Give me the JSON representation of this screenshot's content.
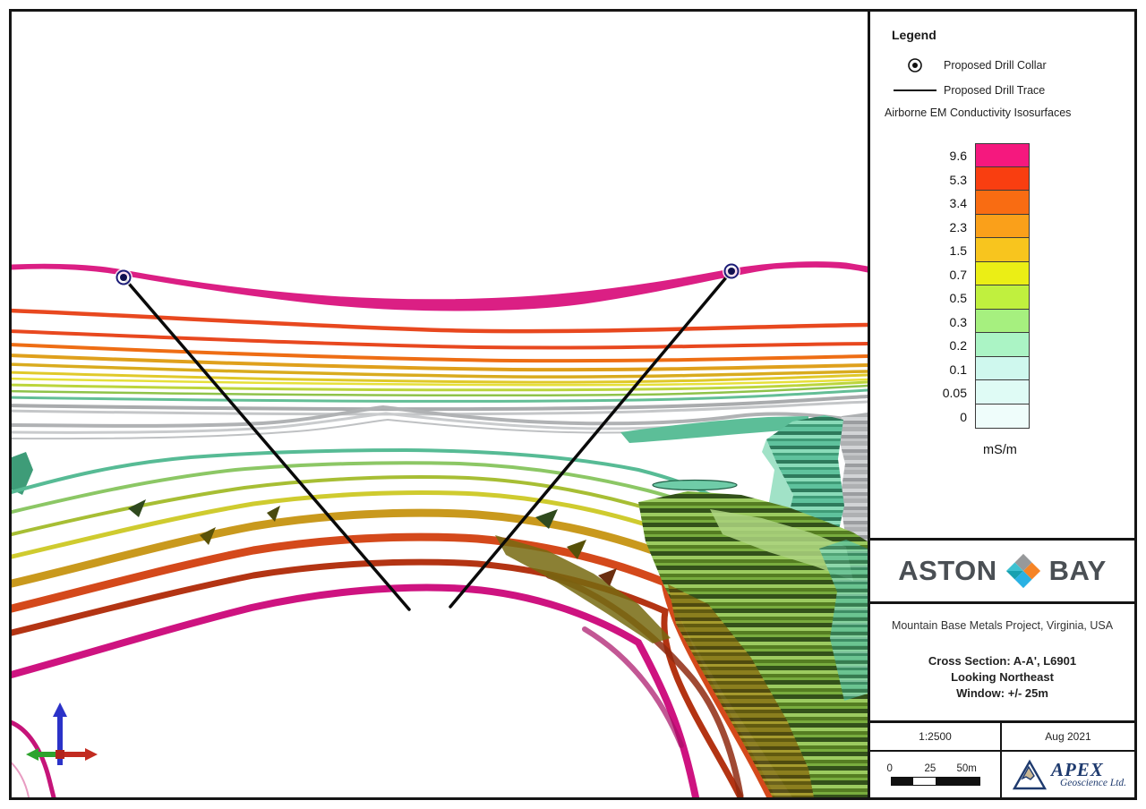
{
  "legend": {
    "title": "Legend",
    "items": [
      {
        "icon": "drill-collar-icon",
        "label": "Proposed Drill Collar"
      },
      {
        "icon": "drill-trace-icon",
        "label": "Proposed Drill Trace"
      }
    ],
    "isosurface_heading": "Airborne EM Conductivity Isosurfaces",
    "unit_label": "mS/m",
    "colorscale": [
      {
        "value": "9.6",
        "color": "#F5187E"
      },
      {
        "value": "5.3",
        "color": "#F93E10"
      },
      {
        "value": "3.4",
        "color": "#F96C12"
      },
      {
        "value": "2.3",
        "color": "#FAA01A"
      },
      {
        "value": "1.5",
        "color": "#F8C51E"
      },
      {
        "value": "0.7",
        "color": "#EBEE15"
      },
      {
        "value": "0.5",
        "color": "#C0F03E"
      },
      {
        "value": "0.3",
        "color": "#A6F07F"
      },
      {
        "value": "0.2",
        "color": "#ABF4C5"
      },
      {
        "value": "0.1",
        "color": "#CFF8EE"
      },
      {
        "value": "0.05",
        "color": "#DFFBF5"
      },
      {
        "value": "0",
        "color": "#EFFDFB"
      }
    ]
  },
  "branding": {
    "company_left": "ASTON",
    "company_right": "BAY",
    "diamond_colors": {
      "top": "#97999B",
      "left_upper": "#3EC1D1",
      "left_lower": "#17A0B0",
      "right": "#F58426",
      "bottom": "#29B1E3"
    }
  },
  "titleblock": {
    "project_line": "Mountain Base Metals Project, Virginia, USA",
    "section_line1": "Cross Section: A-A', L6901",
    "section_line2": "Looking Northeast",
    "section_line3": "Window: +/- 25m",
    "scale_text": "1:2500",
    "date_text": "Aug 2021",
    "scalebar_labels": [
      "0",
      "25",
      "50m"
    ],
    "consultant_name": "APEX",
    "consultant_sub": "Geoscience Ltd."
  }
}
